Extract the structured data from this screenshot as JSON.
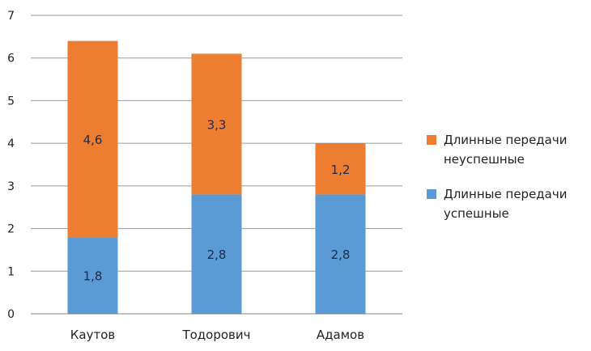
{
  "chart_data": {
    "type": "bar",
    "stacked": true,
    "categories": [
      "Каутов",
      "Тодорович",
      "Адамов"
    ],
    "series": [
      {
        "name": "Длинные передачи успешные",
        "color": "#5b9bd5",
        "values": [
          1.8,
          2.8,
          2.8
        ],
        "labels": [
          "1,8",
          "2,8",
          "2,8"
        ]
      },
      {
        "name": "Длинные передачи неуспешные",
        "color": "#ed7d31",
        "values": [
          4.6,
          3.3,
          1.2
        ],
        "labels": [
          "4,6",
          "3,3",
          "1,2"
        ]
      }
    ],
    "ylim": [
      0,
      7
    ],
    "yticks": [
      "0",
      "1",
      "2",
      "3",
      "4",
      "5",
      "6",
      "7"
    ],
    "grid": true,
    "legend_position": "right"
  },
  "legend": [
    {
      "line1": "Длинные передачи",
      "line2": "неуспешные",
      "color": "#ed7d31"
    },
    {
      "line1": "Длинные передачи",
      "line2": "успешные",
      "color": "#5b9bd5"
    }
  ]
}
